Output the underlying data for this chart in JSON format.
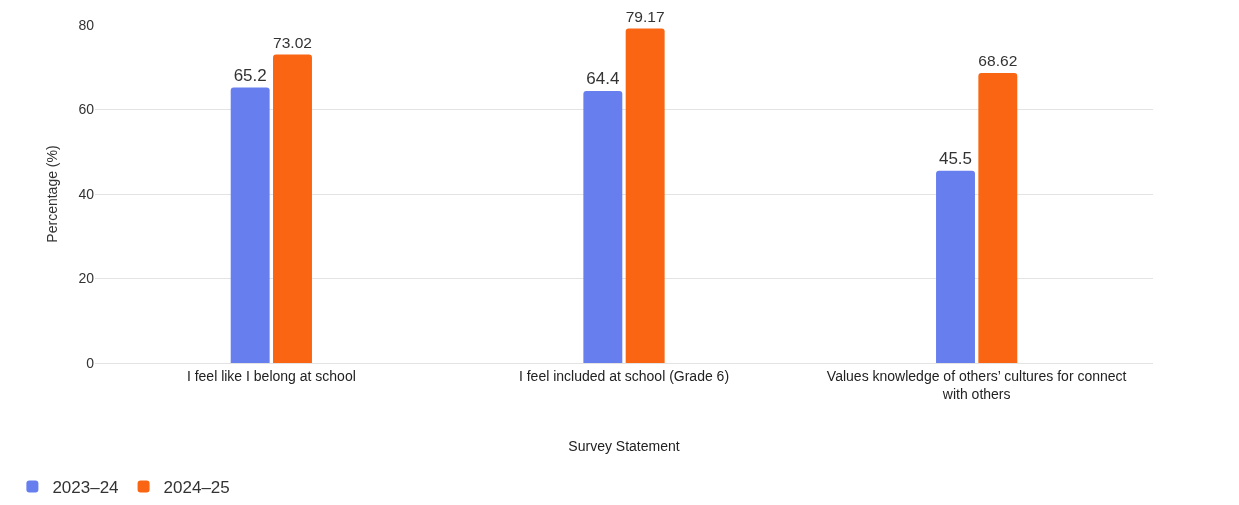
{
  "chart_data": {
    "type": "bar",
    "xlabel": "Survey Statement",
    "ylabel": "Percentage (%)",
    "categories": [
      "I feel like I belong at school",
      "I feel included at school (Grade 6)",
      "Values knowledge of others’ cultures for connect with others"
    ],
    "series": [
      {
        "name": "2023–24",
        "color": "#667eee",
        "values": [
          65.2,
          64.4,
          45.5
        ]
      },
      {
        "name": "2024–25",
        "color": "#f96512",
        "values": [
          73.02,
          79.17,
          68.62
        ]
      }
    ],
    "ylim": [
      0,
      80
    ],
    "yticks": [
      0,
      20,
      40,
      60,
      80
    ],
    "grid": "y",
    "legend": "bottom left",
    "data_labels": true
  }
}
